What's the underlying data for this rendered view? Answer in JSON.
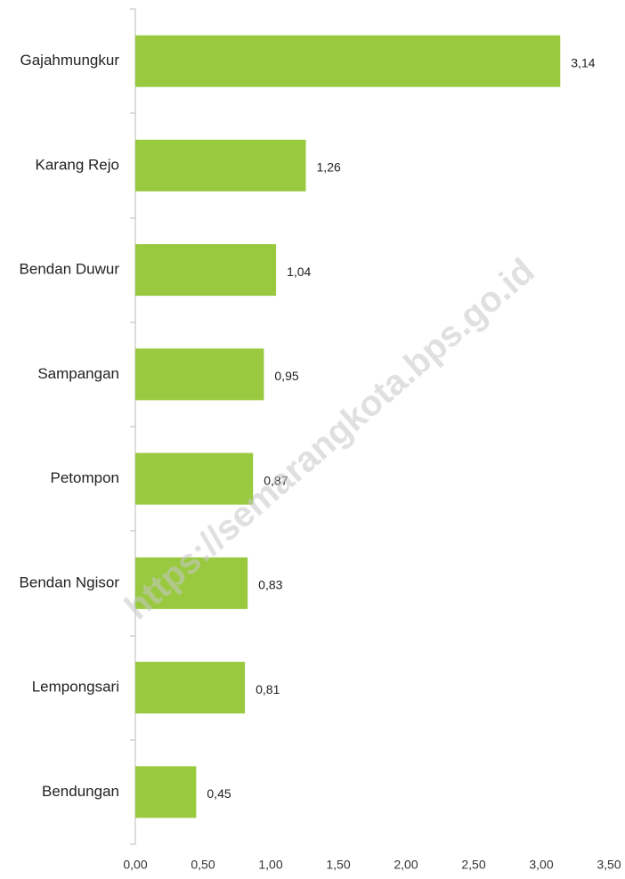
{
  "chart_data": {
    "type": "barh",
    "categories": [
      "Gajahmungkur",
      "Karang Rejo",
      "Bendan Duwur",
      "Sampangan",
      "Petompon",
      "Bendan Ngisor",
      "Lempongsari",
      "Bendungan"
    ],
    "values": [
      3.14,
      1.26,
      1.04,
      0.95,
      0.87,
      0.83,
      0.81,
      0.45
    ],
    "value_labels": [
      "3,14",
      "1,26",
      "1,04",
      "0,95",
      "0,87",
      "0,83",
      "0,81",
      "0,45"
    ],
    "color": "#99c93e",
    "xlim": [
      0,
      3.5
    ],
    "xticks": [
      {
        "value": 0,
        "label": "0,00"
      },
      {
        "value": 0.5,
        "label": "0,50"
      },
      {
        "value": 1,
        "label": "1,00"
      },
      {
        "value": 1.5,
        "label": "1,50"
      },
      {
        "value": 2,
        "label": "2,00"
      },
      {
        "value": 2.5,
        "label": "2,50"
      },
      {
        "value": 3,
        "label": "3,00"
      },
      {
        "value": 3.5,
        "label": "3,50"
      }
    ],
    "grid": false,
    "annotations": [
      "https://semarangkota.bps.go.id"
    ]
  }
}
